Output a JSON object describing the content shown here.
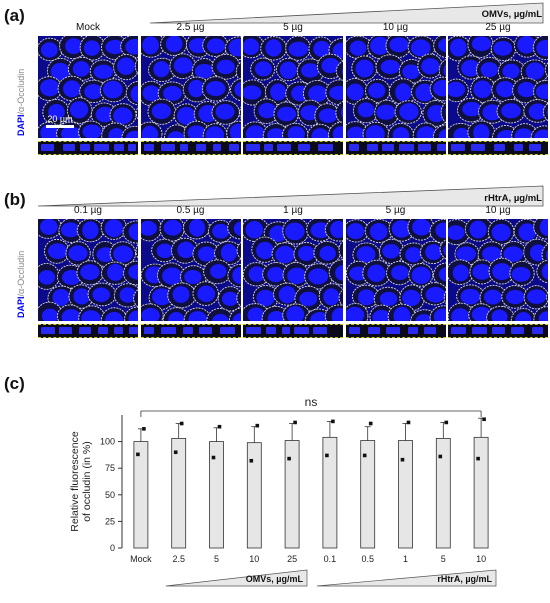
{
  "panels": {
    "a": {
      "letter": "(a)",
      "gradient_label": "OMVs, µg/mL",
      "columns": [
        "Mock",
        "2.5 µg",
        "5 µg",
        "10 µg",
        "25 µg"
      ]
    },
    "b": {
      "letter": "(b)",
      "gradient_label": "rHtrA, µg/mL",
      "columns": [
        "0.1 µg",
        "0.5 µg",
        "1 µg",
        "5 µg",
        "10 µg"
      ]
    },
    "c": {
      "letter": "(c)"
    }
  },
  "stain": {
    "dapi": "DAPI",
    "separator": "/",
    "occludin": "α-Occludin"
  },
  "scale_bar": "20 µm",
  "colors": {
    "nuclei": "#1a1aff",
    "background": "#0a0a8a",
    "membrane": "#d8d8d8",
    "bar_fill": "#e6e6e6"
  },
  "chart_data": {
    "type": "bar",
    "categories": [
      "Mock",
      "2.5",
      "5",
      "10",
      "25",
      "0.1",
      "0.5",
      "1",
      "5",
      "10"
    ],
    "values": [
      100,
      103,
      100,
      99,
      101,
      104,
      101,
      101,
      103,
      104
    ],
    "errors": [
      12,
      14,
      13,
      15,
      16,
      15,
      13,
      16,
      15,
      18
    ],
    "points": [
      [
        112,
        88
      ],
      [
        117,
        90
      ],
      [
        114,
        85
      ],
      [
        115,
        82
      ],
      [
        118,
        84
      ],
      [
        119,
        87
      ],
      [
        117,
        87
      ],
      [
        118,
        83
      ],
      [
        118,
        86
      ],
      [
        121,
        84
      ]
    ],
    "ylabel": "Relative fluorescence of occludin (in %)",
    "ylabel_lines": [
      "Relative fluorescence",
      "of occludin (in %)"
    ],
    "yticks": [
      0,
      25,
      50,
      75,
      100
    ],
    "ylim": [
      0,
      125
    ],
    "significance": "ns",
    "groups": [
      {
        "label": "OMVs, µg/mL",
        "from": 1,
        "to": 4
      },
      {
        "label": "rHtrA, µg/mL",
        "from": 5,
        "to": 9
      }
    ]
  }
}
